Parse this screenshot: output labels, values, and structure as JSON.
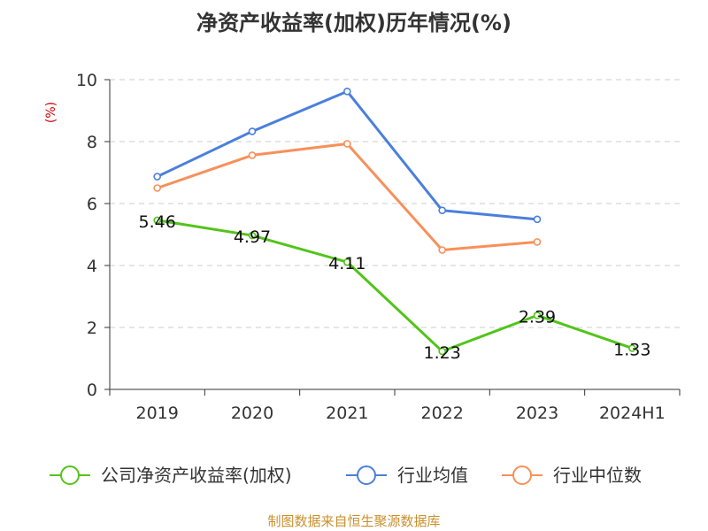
{
  "chart_data": {
    "type": "line",
    "title": "净资产收益率(加权)历年情况(%)",
    "ylabel": "(%)",
    "xlabel": "",
    "categories": [
      "2019",
      "2020",
      "2021",
      "2022",
      "2023",
      "2024H1"
    ],
    "ylim": [
      0,
      10
    ],
    "yticks": [
      0,
      2,
      4,
      6,
      8,
      10
    ],
    "grid": true,
    "legend_position": "bottom",
    "series": [
      {
        "name": "公司净资产收益率(加权)",
        "color": "#52c41a",
        "values": [
          5.46,
          4.97,
          4.11,
          1.23,
          2.39,
          1.33
        ],
        "labels": [
          "5.46",
          "4.97",
          "4.11",
          "1.23",
          "2.39",
          "1.33"
        ]
      },
      {
        "name": "行业均值",
        "color": "#4a7fdc",
        "values": [
          6.87,
          8.33,
          9.62,
          5.78,
          5.49,
          null
        ]
      },
      {
        "name": "行业中位数",
        "color": "#f7905a",
        "values": [
          6.5,
          7.56,
          7.93,
          4.5,
          4.76,
          null
        ]
      }
    ]
  },
  "source_note": "制图数据来自恒生聚源数据库"
}
